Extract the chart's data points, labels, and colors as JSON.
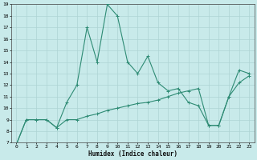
{
  "title": "",
  "xlabel": "Humidex (Indice chaleur)",
  "xlim": [
    -0.5,
    23.5
  ],
  "ylim": [
    7,
    19
  ],
  "yticks": [
    7,
    8,
    9,
    10,
    11,
    12,
    13,
    14,
    15,
    16,
    17,
    18,
    19
  ],
  "xticks": [
    0,
    1,
    2,
    3,
    4,
    5,
    6,
    7,
    8,
    9,
    10,
    11,
    12,
    13,
    14,
    15,
    16,
    17,
    18,
    19,
    20,
    21,
    22,
    23
  ],
  "line1_x": [
    0,
    1,
    2,
    3,
    4,
    5,
    6,
    7,
    8,
    9,
    10,
    11,
    12,
    13,
    14,
    15,
    16,
    17,
    18,
    19,
    20,
    21,
    22,
    23
  ],
  "line1_y": [
    6.8,
    9.0,
    9.0,
    9.0,
    8.3,
    10.5,
    12.0,
    17.0,
    14.0,
    19.0,
    18.0,
    14.0,
    13.0,
    14.5,
    12.2,
    11.5,
    11.7,
    10.5,
    10.2,
    8.5,
    8.5,
    11.0,
    13.3,
    13.0
  ],
  "line2_x": [
    0,
    1,
    2,
    3,
    4,
    5,
    6,
    7,
    8,
    9,
    10,
    11,
    12,
    13,
    14,
    15,
    16,
    17,
    18,
    19,
    20,
    21,
    22,
    23
  ],
  "line2_y": [
    6.8,
    9.0,
    9.0,
    9.0,
    8.3,
    9.0,
    9.0,
    9.3,
    9.5,
    9.8,
    10.0,
    10.2,
    10.4,
    10.5,
    10.7,
    11.0,
    11.3,
    11.5,
    11.7,
    8.5,
    8.5,
    11.0,
    12.2,
    12.8
  ],
  "line_color": "#2e8b74",
  "bg_color": "#c8eaea",
  "grid_color": "#aed4d4",
  "tick_fontsize": 4.5,
  "xlabel_fontsize": 5.5
}
